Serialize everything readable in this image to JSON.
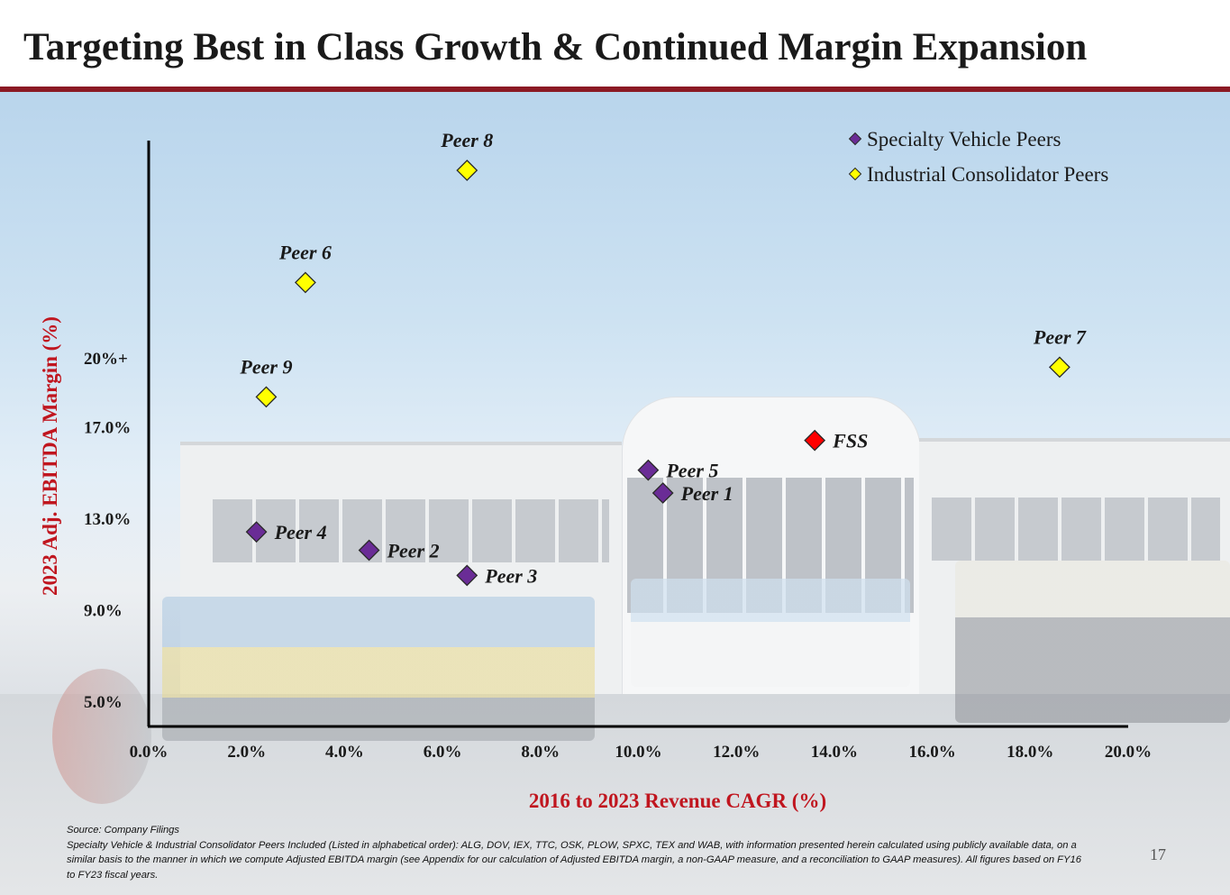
{
  "page": {
    "title": "Targeting Best in Class Growth & Continued Margin Expansion",
    "accent_color": "#8b1a24",
    "page_number": "17"
  },
  "footnote": {
    "source": "Source: Company Filings",
    "note": "Specialty Vehicle & Industrial Consolidator Peers Included (Listed in alphabetical order): ALG, DOV, IEX, TTC, OSK, PLOW, SPXC, TEX and WAB, with information presented herein calculated using publicly available data, on a similar basis to the manner in which we compute Adjusted EBITDA margin (see Appendix for our calculation of Adjusted EBITDA margin, a non-GAAP measure, and a reconciliation to GAAP measures). All figures based on FY16 to FY23 fiscal years."
  },
  "chart_data": {
    "type": "scatter",
    "xlabel": "2016 to 2023 Revenue CAGR (%)",
    "ylabel": "2023 Adj. EBITDA Margin (%)",
    "xlim": [
      0,
      20
    ],
    "x_ticks": [
      0,
      2,
      4,
      6,
      8,
      10,
      12,
      14,
      16,
      18,
      20
    ],
    "x_tick_labels": [
      "0.0%",
      "2.0%",
      "4.0%",
      "6.0%",
      "8.0%",
      "10.0%",
      "12.0%",
      "14.0%",
      "16.0%",
      "18.0%",
      "20.0%"
    ],
    "ylim": [
      3.9,
      29.5
    ],
    "y_ticks": [
      5,
      9,
      13,
      17,
      20
    ],
    "y_tick_labels": [
      "5.0%",
      "9.0%",
      "13.0%",
      "17.0%",
      "20%+"
    ],
    "grid": false,
    "legend_position": "top-right",
    "series": [
      {
        "name": "Specialty Vehicle Peers",
        "color": "#6a2c96",
        "marker": "diamond",
        "points": [
          {
            "label": "Peer 4",
            "x": 2.2,
            "y": 12.4
          },
          {
            "label": "Peer 2",
            "x": 4.5,
            "y": 11.6
          },
          {
            "label": "Peer 3",
            "x": 6.5,
            "y": 10.5
          },
          {
            "label": "Peer 5",
            "x": 10.2,
            "y": 15.1
          },
          {
            "label": "Peer 1",
            "x": 10.5,
            "y": 14.1
          }
        ]
      },
      {
        "name": "Industrial Consolidator Peers",
        "color": "#ffff00",
        "marker": "diamond",
        "points": [
          {
            "label": "Peer 8",
            "x": 6.5,
            "y": 28.2
          },
          {
            "label": "Peer 6",
            "x": 3.2,
            "y": 23.3
          },
          {
            "label": "Peer 9",
            "x": 2.4,
            "y": 18.3
          },
          {
            "label": "Peer 7",
            "x": 18.6,
            "y": 19.6
          }
        ]
      },
      {
        "color": "#ff0000",
        "marker": "diamond",
        "points": [
          {
            "label": "FSS",
            "x": 13.6,
            "y": 16.4
          }
        ]
      }
    ]
  }
}
